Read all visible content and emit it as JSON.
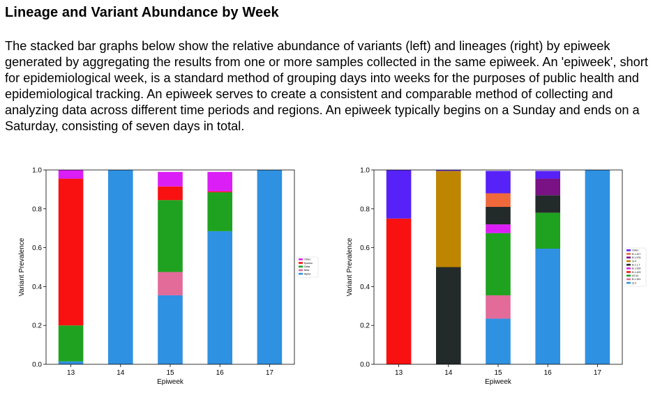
{
  "page": {
    "title": "Lineage and Variant Abundance by Week",
    "description": "The stacked bar graphs below show the relative abundance of variants (left) and lineages (right) by epiweek generated by aggregating the results from one or more samples collected in the same epiweek. An 'epiweek', short for epidemiological week, is a standard method of grouping days into weeks for the purposes of public health and epidemiological tracking. An epiweek serves to create a consistent and comparable method of collecting and analyzing data across different time periods and regions. An epiweek typically begins on a Sunday and ends on a Saturday, consisting of seven days in total."
  },
  "chart_data": [
    {
      "id": "left",
      "type": "bar",
      "stacked": true,
      "title": "",
      "xlabel": "Epiweek",
      "ylabel": "Variant Prevalence",
      "ylim": [
        0,
        1
      ],
      "yticks": [
        "0.0",
        "0.2",
        "0.4",
        "0.6",
        "0.8",
        "1.0"
      ],
      "grid": false,
      "legend": "center-right",
      "categories": [
        "13",
        "14",
        "15",
        "16",
        "17"
      ],
      "series": [
        {
          "name": "Alpha",
          "color": "#2f91e2",
          "values": [
            0.015,
            1.0,
            0.355,
            0.685,
            1.0
          ]
        },
        {
          "name": "Beta",
          "color": "#e26b9a",
          "values": [
            0.0,
            0.0,
            0.12,
            0.0,
            0.0
          ]
        },
        {
          "name": "Delta",
          "color": "#1fa21f",
          "values": [
            0.185,
            0.0,
            0.37,
            0.2,
            0.0
          ]
        },
        {
          "name": "Epsilon",
          "color": "#f91111",
          "values": [
            0.755,
            0.0,
            0.07,
            0.005,
            0.0
          ]
        },
        {
          "name": "Other",
          "color": "#db1ef6",
          "values": [
            0.045,
            0.0,
            0.075,
            0.1,
            0.0
          ]
        }
      ]
    },
    {
      "id": "right",
      "type": "bar",
      "stacked": true,
      "title": "",
      "xlabel": "Epiweek",
      "ylabel": "Variant Prevalence",
      "ylim": [
        0,
        1
      ],
      "yticks": [
        "0.0",
        "0.2",
        "0.4",
        "0.6",
        "0.8",
        "1.0"
      ],
      "grid": false,
      "legend": "center-right",
      "categories": [
        "13",
        "14",
        "15",
        "16",
        "17"
      ],
      "series": [
        {
          "name": "Q.3",
          "color": "#2f91e2",
          "values": [
            0.0,
            0.0,
            0.235,
            0.595,
            1.0
          ]
        },
        {
          "name": "B.1.351",
          "color": "#e26b9a",
          "values": [
            0.0,
            0.0,
            0.12,
            0.0,
            0.0
          ]
        },
        {
          "name": "AY.44",
          "color": "#1fa21f",
          "values": [
            0.0,
            0.0,
            0.32,
            0.185,
            0.0
          ]
        },
        {
          "name": "B.1.429",
          "color": "#f91111",
          "values": [
            0.75,
            0.0,
            0.0,
            0.0,
            0.0
          ]
        },
        {
          "name": "B.1.526",
          "color": "#db1ef6",
          "values": [
            0.0,
            0.0,
            0.045,
            0.0,
            0.0
          ]
        },
        {
          "name": "B.1.1.7",
          "color": "#232a2a",
          "values": [
            0.0,
            0.5,
            0.09,
            0.09,
            0.0
          ]
        },
        {
          "name": "Q.4",
          "color": "#be8500",
          "values": [
            0.0,
            0.495,
            0.0,
            0.0,
            0.0
          ]
        },
        {
          "name": "B.1.576",
          "color": "#7a1184",
          "values": [
            0.0,
            0.0,
            0.0,
            0.085,
            0.0
          ]
        },
        {
          "name": "B.1.427",
          "color": "#f0693a",
          "values": [
            0.0,
            0.0,
            0.07,
            0.0,
            0.0
          ]
        },
        {
          "name": "Other",
          "color": "#5622f7",
          "values": [
            0.25,
            0.005,
            0.115,
            0.04,
            0.0
          ]
        }
      ]
    }
  ]
}
